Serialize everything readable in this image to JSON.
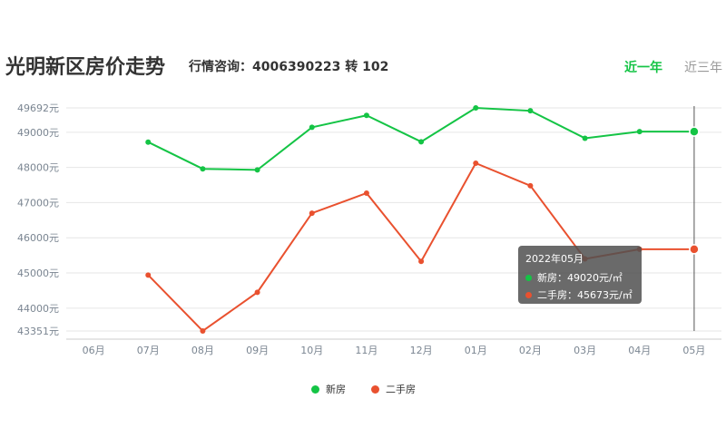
{
  "header": {
    "title": "光明新区房价走势",
    "hotline": "行情咨询：4006390223 转 102"
  },
  "tabs": [
    {
      "label": "近一年",
      "active": true
    },
    {
      "label": "近三年",
      "active": false
    }
  ],
  "colors": {
    "new": "#14c445",
    "second": "#e9512f",
    "axis_text": "#7a8591",
    "grid": "#e6e6e6"
  },
  "chart_data": {
    "type": "line",
    "categories": [
      "06月",
      "07月",
      "08月",
      "09月",
      "10月",
      "11月",
      "12月",
      "01月",
      "02月",
      "03月",
      "04月",
      "05月"
    ],
    "y_ticks": [
      "49692元",
      "49000元",
      "48000元",
      "47000元",
      "46000元",
      "45000元",
      "44000元",
      "43351元"
    ],
    "y_tick_values": [
      49692,
      49000,
      48000,
      47000,
      46000,
      45000,
      44000,
      43351
    ],
    "ylim": [
      43351,
      49692
    ],
    "series": [
      {
        "name": "新房",
        "values": [
          null,
          48720,
          47960,
          47930,
          49140,
          49480,
          48730,
          49692,
          49610,
          48830,
          49020,
          49020
        ]
      },
      {
        "name": "二手房",
        "values": [
          null,
          44940,
          43351,
          44450,
          46700,
          47270,
          45330,
          48120,
          47480,
          45400,
          45673,
          45673
        ]
      }
    ],
    "legend": {
      "position": "bottom-center",
      "items": [
        "新房",
        "二手房"
      ]
    },
    "grid": true,
    "highlight_index": 11,
    "tooltip": {
      "title": "2022年05月",
      "rows": [
        {
          "label": "新房：49020元/㎡"
        },
        {
          "label": "二手房：45673元/㎡"
        }
      ]
    }
  }
}
